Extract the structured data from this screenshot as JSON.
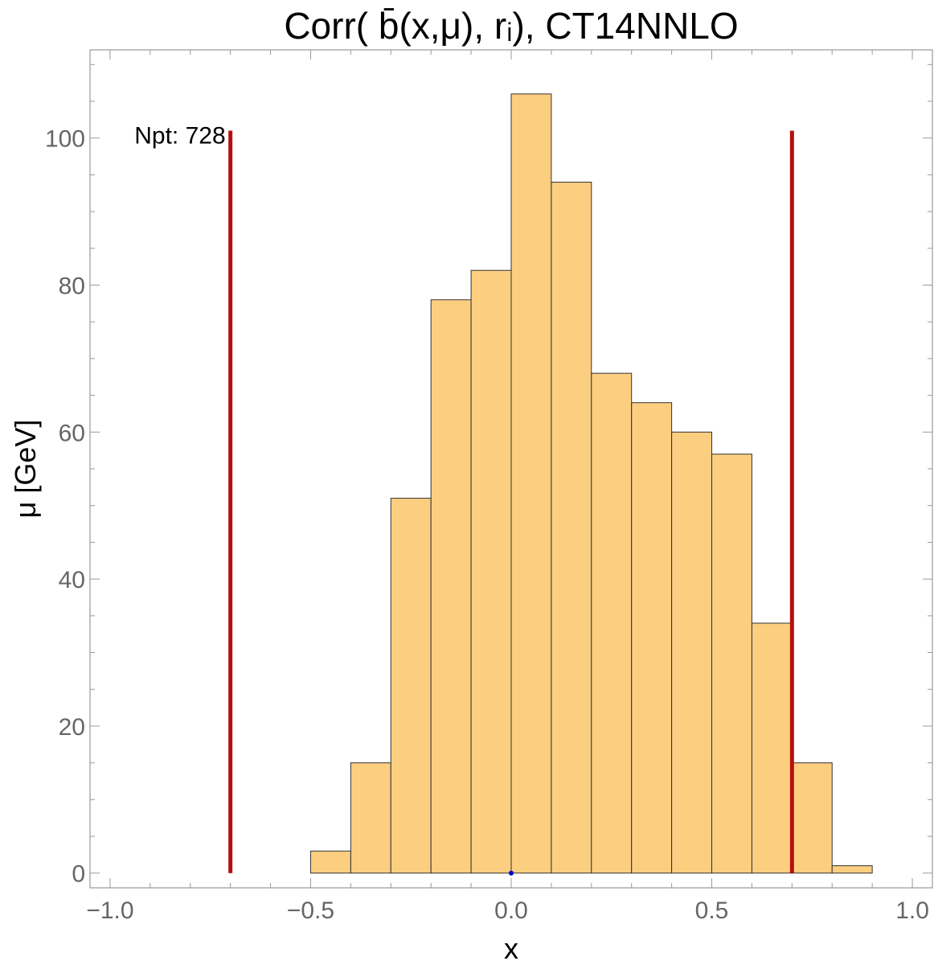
{
  "chart_data": {
    "type": "bar",
    "title": "Corr( b̄(x,μ), rᵢ), CT14NNLO",
    "xlabel": "x",
    "ylabel": "μ [GeV]",
    "xlim": [
      -1.05,
      1.05
    ],
    "ylim": [
      -2,
      112
    ],
    "x_ticks": [
      -1.0,
      -0.5,
      0.0,
      0.5,
      1.0
    ],
    "x_tick_labels": [
      "−1.0",
      "−0.5",
      "0.0",
      "0.5",
      "1.0"
    ],
    "y_ticks": [
      0,
      20,
      40,
      60,
      80,
      100
    ],
    "y_tick_labels": [
      "0",
      "20",
      "40",
      "60",
      "80",
      "100"
    ],
    "bin_width": 0.1,
    "bins": [
      {
        "x0": -0.5,
        "value": 3
      },
      {
        "x0": -0.4,
        "value": 15
      },
      {
        "x0": -0.3,
        "value": 51
      },
      {
        "x0": -0.2,
        "value": 78
      },
      {
        "x0": -0.1,
        "value": 82
      },
      {
        "x0": 0.0,
        "value": 106
      },
      {
        "x0": 0.1,
        "value": 94
      },
      {
        "x0": 0.2,
        "value": 68
      },
      {
        "x0": 0.3,
        "value": 64
      },
      {
        "x0": 0.4,
        "value": 60
      },
      {
        "x0": 0.5,
        "value": 57
      },
      {
        "x0": 0.6,
        "value": 34
      },
      {
        "x0": 0.7,
        "value": 15
      },
      {
        "x0": 0.8,
        "value": 1
      }
    ],
    "reference_lines": [
      {
        "x": -0.7,
        "y0": 0,
        "y1": 101
      },
      {
        "x": 0.7,
        "y0": 0,
        "y1": 101
      }
    ],
    "marker_point": {
      "x": 0.0,
      "y": 0
    },
    "annotation": "Npt: 728",
    "colors": {
      "bar_fill": "#fcce80",
      "bar_edge": "#333333",
      "reference_line": "#b50f0f",
      "marker": "#0000cc"
    }
  }
}
